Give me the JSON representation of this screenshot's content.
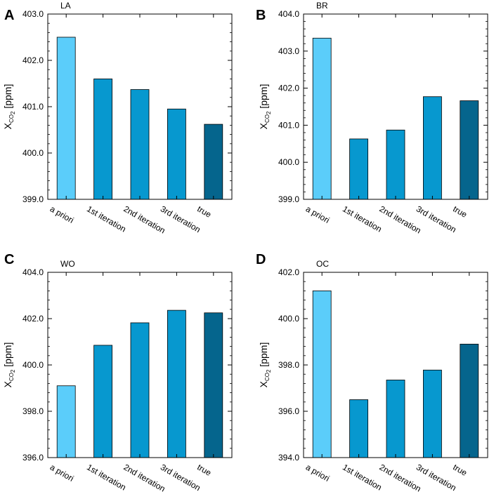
{
  "colors": {
    "a_priori": "#5bcdfa",
    "iteration": "#0798cf",
    "true": "#05658d",
    "axis": "#000000"
  },
  "chart_data": [
    {
      "type": "bar",
      "panel_letter": "A",
      "title": "LA",
      "ylabel_main": "X",
      "ylabel_sub": "CO",
      "ylabel_sub2": "2",
      "ylabel_unit": " [ppm]",
      "categories": [
        "a priori",
        "1st iteration",
        "2nd iteration",
        "3rd iteration",
        "true"
      ],
      "values": [
        402.5,
        401.6,
        401.37,
        400.95,
        400.62
      ],
      "ylim": [
        399.0,
        403.0
      ],
      "yticks": [
        399.0,
        400.0,
        401.0,
        402.0,
        403.0
      ],
      "ytick_labels": [
        "399.0",
        "400.0",
        "401.0",
        "402.0",
        "403.0"
      ]
    },
    {
      "type": "bar",
      "panel_letter": "B",
      "title": "BR",
      "ylabel_main": "X",
      "ylabel_sub": "CO",
      "ylabel_sub2": "2",
      "ylabel_unit": " [ppm]",
      "categories": [
        "a priori",
        "1st iteration",
        "2nd iteration",
        "3rd iteration",
        "true"
      ],
      "values": [
        403.35,
        400.63,
        400.87,
        401.77,
        401.66
      ],
      "ylim": [
        399.0,
        404.0
      ],
      "yticks": [
        399.0,
        400.0,
        401.0,
        402.0,
        403.0,
        404.0
      ],
      "ytick_labels": [
        "399.0",
        "400.0",
        "401.0",
        "402.0",
        "403.0",
        "404.0"
      ]
    },
    {
      "type": "bar",
      "panel_letter": "C",
      "title": "WO",
      "ylabel_main": "X",
      "ylabel_sub": "CO",
      "ylabel_sub2": "2",
      "ylabel_unit": " [ppm]",
      "categories": [
        "a priori",
        "1st iteration",
        "2nd iteration",
        "3rd iteration",
        "true"
      ],
      "values": [
        399.1,
        400.85,
        401.82,
        402.36,
        402.25
      ],
      "ylim": [
        396.0,
        404.0
      ],
      "yticks": [
        396.0,
        398.0,
        400.0,
        402.0,
        404.0
      ],
      "ytick_labels": [
        "396.0",
        "398.0",
        "400.0",
        "402.0",
        "404.0"
      ]
    },
    {
      "type": "bar",
      "panel_letter": "D",
      "title": "OC",
      "ylabel_main": "X",
      "ylabel_sub": "CO",
      "ylabel_sub2": "2",
      "ylabel_unit": " [ppm]",
      "categories": [
        "a priori",
        "1st iteration",
        "2nd iteration",
        "3rd iteration",
        "true"
      ],
      "values": [
        401.2,
        396.5,
        397.35,
        397.78,
        398.9
      ],
      "ylim": [
        394.0,
        402.0
      ],
      "yticks": [
        394.0,
        396.0,
        398.0,
        400.0,
        402.0
      ],
      "ytick_labels": [
        "394.0",
        "396.0",
        "398.0",
        "400.0",
        "402.0"
      ]
    }
  ]
}
